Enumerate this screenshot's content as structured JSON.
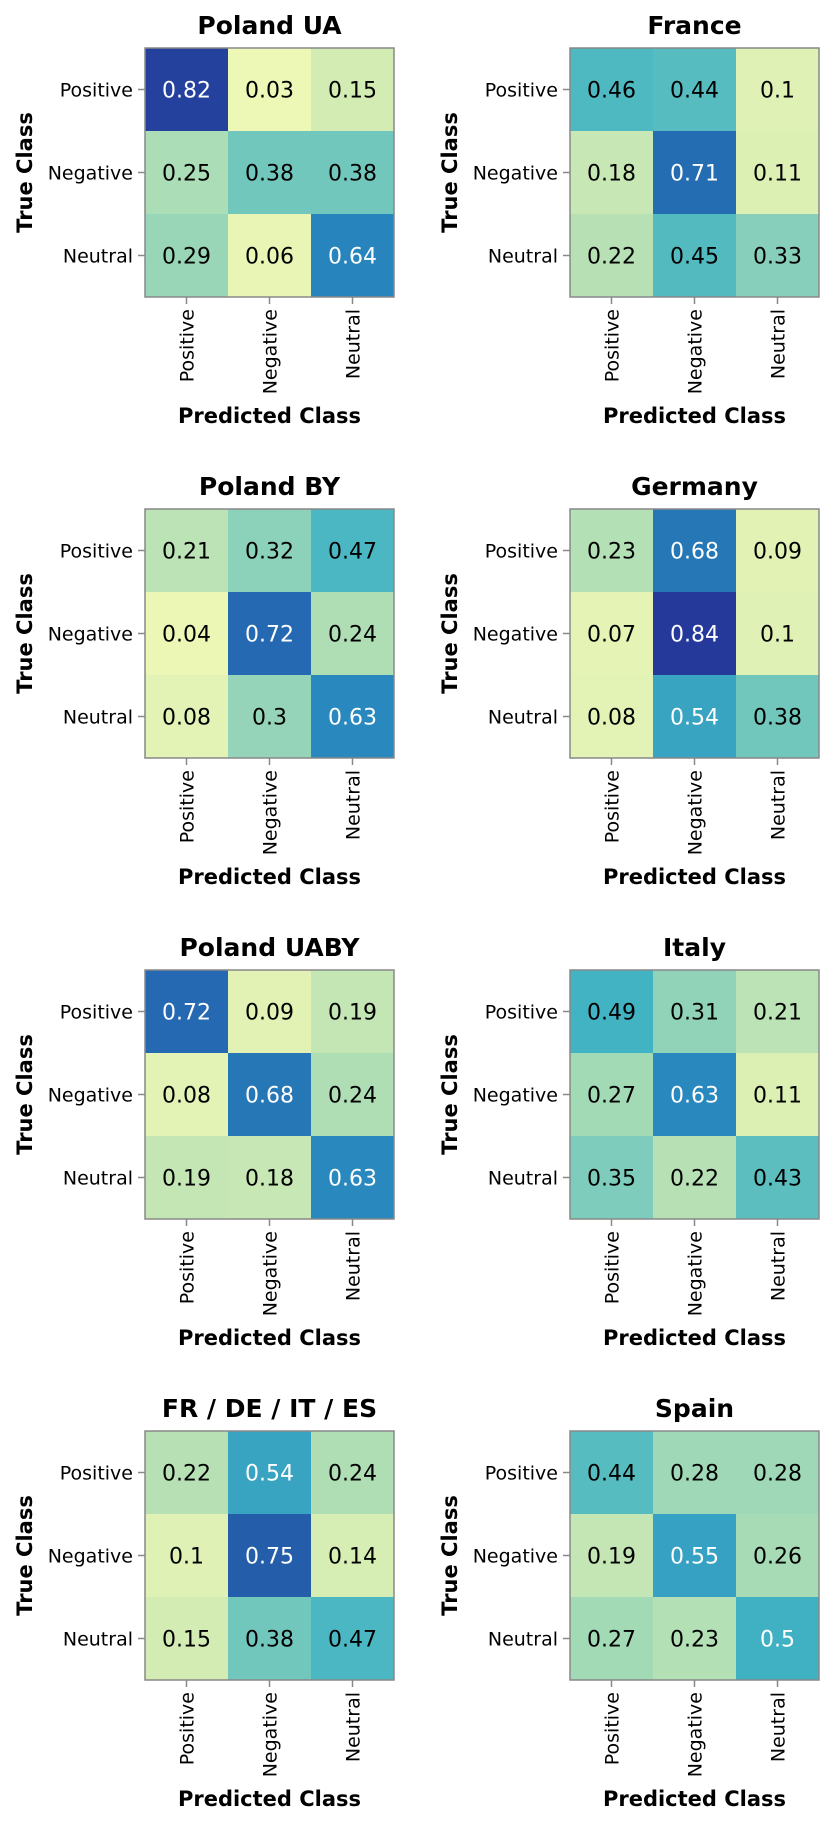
{
  "chart_data": [
    {
      "type": "heatmap",
      "title": "Poland UA",
      "xlabel": "Predicted Class",
      "ylabel": "True Class",
      "rows": [
        "Positive",
        "Negative",
        "Neutral"
      ],
      "cols": [
        "Positive",
        "Negative",
        "Neutral"
      ],
      "values": [
        [
          0.82,
          0.03,
          0.15
        ],
        [
          0.25,
          0.38,
          0.38
        ],
        [
          0.29,
          0.06,
          0.64
        ]
      ],
      "labels": [
        [
          "0.82",
          "0.03",
          "0.15"
        ],
        [
          "0.25",
          "0.38",
          "0.38"
        ],
        [
          "0.29",
          "0.06",
          "0.64"
        ]
      ]
    },
    {
      "type": "heatmap",
      "title": "France",
      "xlabel": "Predicted Class",
      "ylabel": "True Class",
      "rows": [
        "Positive",
        "Negative",
        "Neutral"
      ],
      "cols": [
        "Positive",
        "Negative",
        "Neutral"
      ],
      "values": [
        [
          0.46,
          0.44,
          0.1
        ],
        [
          0.18,
          0.71,
          0.11
        ],
        [
          0.22,
          0.45,
          0.33
        ]
      ],
      "labels": [
        [
          "0.46",
          "0.44",
          "0.1"
        ],
        [
          "0.18",
          "0.71",
          "0.11"
        ],
        [
          "0.22",
          "0.45",
          "0.33"
        ]
      ]
    },
    {
      "type": "heatmap",
      "title": "Poland BY",
      "xlabel": "Predicted Class",
      "ylabel": "True Class",
      "rows": [
        "Positive",
        "Negative",
        "Neutral"
      ],
      "cols": [
        "Positive",
        "Negative",
        "Neutral"
      ],
      "values": [
        [
          0.21,
          0.32,
          0.47
        ],
        [
          0.04,
          0.72,
          0.24
        ],
        [
          0.08,
          0.3,
          0.63
        ]
      ],
      "labels": [
        [
          "0.21",
          "0.32",
          "0.47"
        ],
        [
          "0.04",
          "0.72",
          "0.24"
        ],
        [
          "0.08",
          "0.3",
          "0.63"
        ]
      ]
    },
    {
      "type": "heatmap",
      "title": "Germany",
      "xlabel": "Predicted Class",
      "ylabel": "True Class",
      "rows": [
        "Positive",
        "Negative",
        "Neutral"
      ],
      "cols": [
        "Positive",
        "Negative",
        "Neutral"
      ],
      "values": [
        [
          0.23,
          0.68,
          0.09
        ],
        [
          0.07,
          0.84,
          0.1
        ],
        [
          0.08,
          0.54,
          0.38
        ]
      ],
      "labels": [
        [
          "0.23",
          "0.68",
          "0.09"
        ],
        [
          "0.07",
          "0.84",
          "0.1"
        ],
        [
          "0.08",
          "0.54",
          "0.38"
        ]
      ]
    },
    {
      "type": "heatmap",
      "title": "Poland UABY",
      "xlabel": "Predicted Class",
      "ylabel": "True Class",
      "rows": [
        "Positive",
        "Negative",
        "Neutral"
      ],
      "cols": [
        "Positive",
        "Negative",
        "Neutral"
      ],
      "values": [
        [
          0.72,
          0.09,
          0.19
        ],
        [
          0.08,
          0.68,
          0.24
        ],
        [
          0.19,
          0.18,
          0.63
        ]
      ],
      "labels": [
        [
          "0.72",
          "0.09",
          "0.19"
        ],
        [
          "0.08",
          "0.68",
          "0.24"
        ],
        [
          "0.19",
          "0.18",
          "0.63"
        ]
      ]
    },
    {
      "type": "heatmap",
      "title": "Italy",
      "xlabel": "Predicted Class",
      "ylabel": "True Class",
      "rows": [
        "Positive",
        "Negative",
        "Neutral"
      ],
      "cols": [
        "Positive",
        "Negative",
        "Neutral"
      ],
      "values": [
        [
          0.49,
          0.31,
          0.21
        ],
        [
          0.27,
          0.63,
          0.11
        ],
        [
          0.35,
          0.22,
          0.43
        ]
      ],
      "labels": [
        [
          "0.49",
          "0.31",
          "0.21"
        ],
        [
          "0.27",
          "0.63",
          "0.11"
        ],
        [
          "0.35",
          "0.22",
          "0.43"
        ]
      ]
    },
    {
      "type": "heatmap",
      "title": "FR / DE / IT / ES",
      "xlabel": "Predicted Class",
      "ylabel": "True Class",
      "rows": [
        "Positive",
        "Negative",
        "Neutral"
      ],
      "cols": [
        "Positive",
        "Negative",
        "Neutral"
      ],
      "values": [
        [
          0.22,
          0.54,
          0.24
        ],
        [
          0.1,
          0.75,
          0.14
        ],
        [
          0.15,
          0.38,
          0.47
        ]
      ],
      "labels": [
        [
          "0.22",
          "0.54",
          "0.24"
        ],
        [
          "0.1",
          "0.75",
          "0.14"
        ],
        [
          "0.15",
          "0.38",
          "0.47"
        ]
      ]
    },
    {
      "type": "heatmap",
      "title": "Spain",
      "xlabel": "Predicted Class",
      "ylabel": "True Class",
      "rows": [
        "Positive",
        "Negative",
        "Neutral"
      ],
      "cols": [
        "Positive",
        "Negative",
        "Neutral"
      ],
      "values": [
        [
          0.44,
          0.28,
          0.28
        ],
        [
          0.19,
          0.55,
          0.26
        ],
        [
          0.27,
          0.23,
          0.5
        ]
      ],
      "labels": [
        [
          "0.44",
          "0.28",
          "0.28"
        ],
        [
          "0.19",
          "0.55",
          "0.26"
        ],
        [
          "0.27",
          "0.23",
          "0.5"
        ]
      ]
    }
  ],
  "colors": {
    "scale": [
      "#eef8b6",
      "#d5edb3",
      "#a6dbb6",
      "#72c7bc",
      "#41b3c3",
      "#2a8fc0",
      "#2468b0",
      "#24399a"
    ],
    "text_dark": "#000000",
    "text_light": "#ffffff",
    "axis": "#888888"
  }
}
